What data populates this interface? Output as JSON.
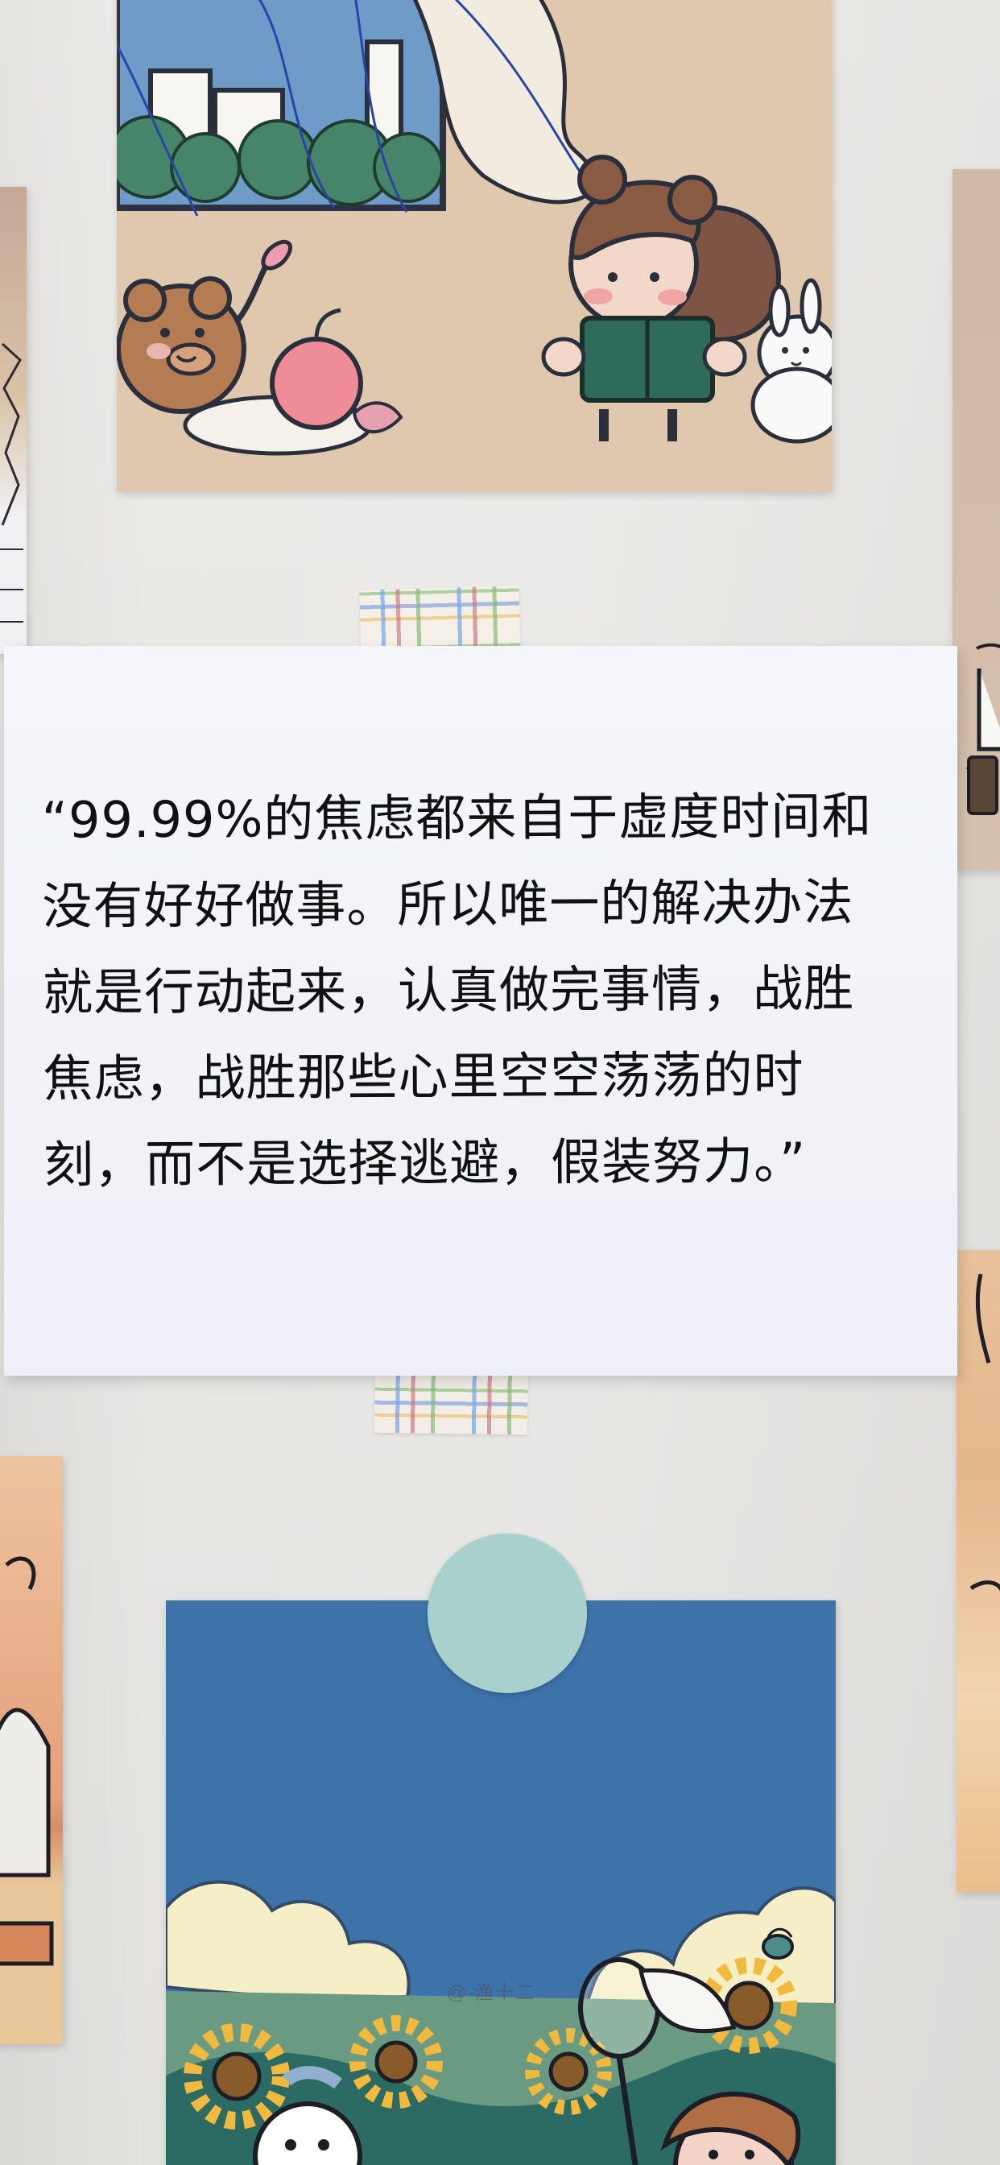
{
  "quote": {
    "text": "“99.99%的焦虑都来自于虚度时间和没有好好做事。所以唯一的解决办法就是行动起来，认真做完事情，战胜焦虑，战胜那些心里空空荡荡的时刻，而不是选择逃避，假装努力。”"
  },
  "watermark": {
    "text": "@-渔十二"
  },
  "colors": {
    "wall": "#ECEBE8",
    "paper": "#F2F3F9",
    "ink": "#111111",
    "card_beige": "#DFC8AD",
    "sky_blue": "#3E73AA",
    "circle_sticker": "#A8D0CC"
  },
  "icons": [
    "bear-icon",
    "apple-icon",
    "girl-reading-icon",
    "bunny-icon",
    "sunflower-icon",
    "bird-icon",
    "butterfly-net-icon"
  ]
}
